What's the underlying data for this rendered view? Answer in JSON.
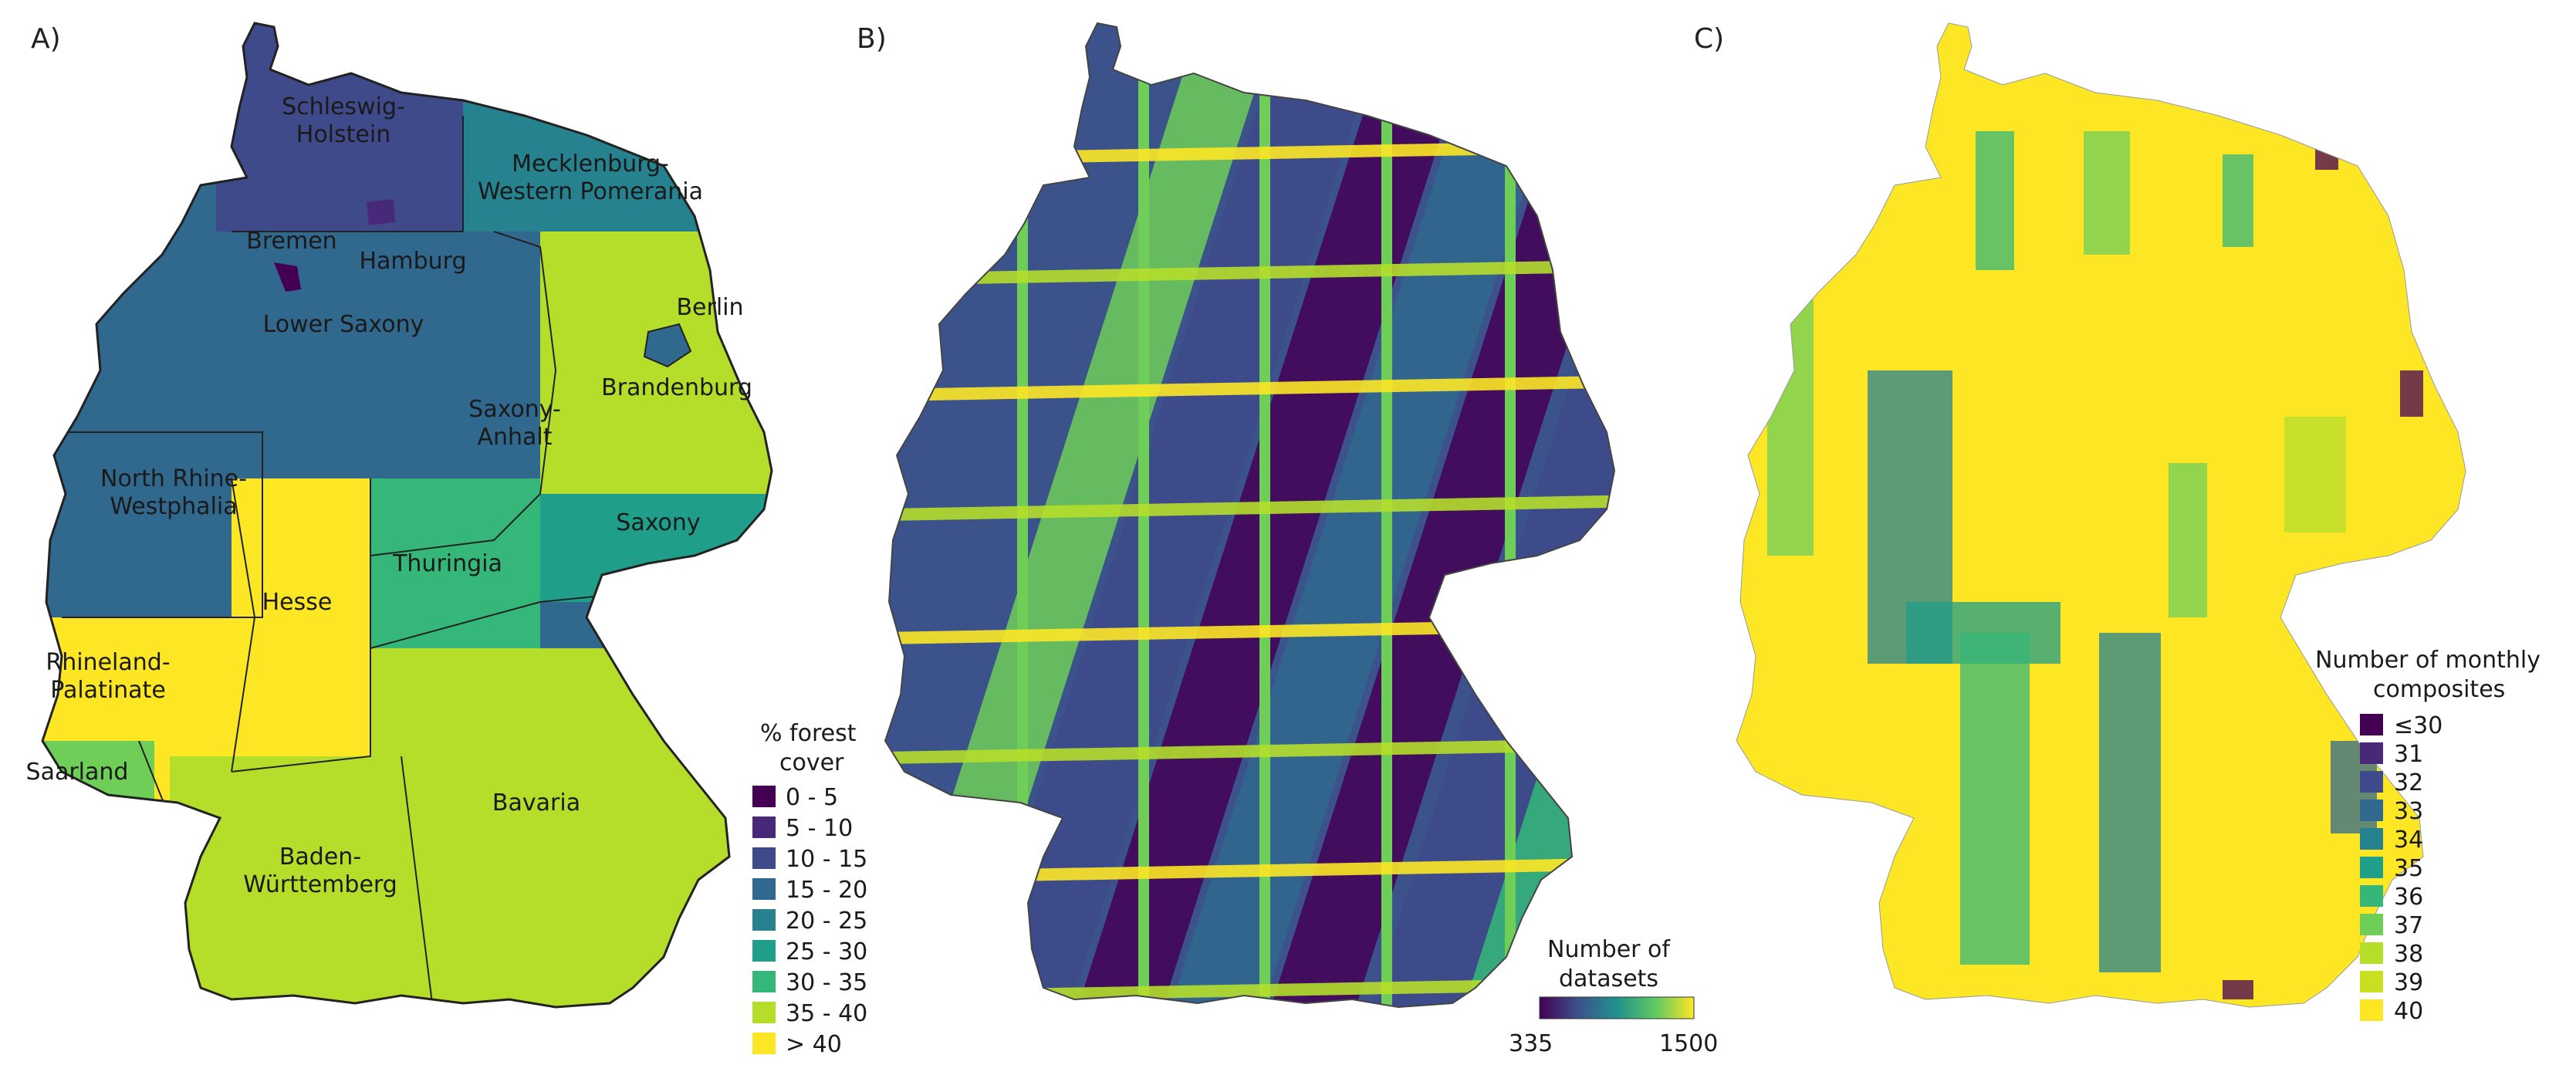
{
  "colors": {
    "viridis": [
      "#440154",
      "#482878",
      "#3e4a89",
      "#31688e",
      "#26828e",
      "#1f9e89",
      "#35b779",
      "#6ece58",
      "#b5de2b",
      "#fde725"
    ],
    "border": "#222222"
  },
  "panel_a": {
    "letter": "A)",
    "legend_title_line1": "% forest",
    "legend_title_line2": "cover",
    "legend_classes": [
      "0 - 5",
      "5 - 10",
      "10 - 15",
      "15 - 20",
      "20 - 25",
      "25 - 30",
      "30 - 35",
      "35 - 40",
      "> 40"
    ],
    "regions": [
      {
        "name": "Schleswig-Holstein",
        "lines": [
          "Schleswig-",
          "Holstein"
        ],
        "class": 2
      },
      {
        "name": "Mecklenburg-Western Pomerania",
        "lines": [
          "Mecklenburg-",
          "Western Pomerania"
        ],
        "class": 4
      },
      {
        "name": "Bremen",
        "lines": [
          "Bremen"
        ],
        "class": 0
      },
      {
        "name": "Hamburg",
        "lines": [
          "Hamburg"
        ],
        "class": 1
      },
      {
        "name": "Lower Saxony",
        "lines": [
          "Lower Saxony"
        ],
        "class": 3
      },
      {
        "name": "Berlin",
        "lines": [
          "Berlin"
        ],
        "class": 3
      },
      {
        "name": "Brandenburg",
        "lines": [
          "Brandenburg"
        ],
        "class": 7
      },
      {
        "name": "Saxony-Anhalt",
        "lines": [
          "Saxony-",
          "Anhalt"
        ],
        "class": 3
      },
      {
        "name": "North Rhine-Westphalia",
        "lines": [
          "North Rhine-",
          "Westphalia"
        ],
        "class": 3
      },
      {
        "name": "Saxony",
        "lines": [
          "Saxony"
        ],
        "class": 5
      },
      {
        "name": "Thuringia",
        "lines": [
          "Thuringia"
        ],
        "class": 6
      },
      {
        "name": "Hesse",
        "lines": [
          "Hesse"
        ],
        "class": 8
      },
      {
        "name": "Rhineland-Palatinate",
        "lines": [
          "Rhineland-",
          "Palatinate"
        ],
        "class": 8
      },
      {
        "name": "Saarland",
        "lines": [
          "Saarland"
        ],
        "class": 6
      },
      {
        "name": "Bavaria",
        "lines": [
          "Bavaria"
        ],
        "class": 7
      },
      {
        "name": "Baden-Württemberg",
        "lines": [
          "Baden-",
          "Württemberg"
        ],
        "class": 7
      }
    ]
  },
  "panel_b": {
    "letter": "B)",
    "legend_title_line1": "Number of",
    "legend_title_line2": "datasets",
    "scale_min": "335",
    "scale_max": "1500"
  },
  "panel_c": {
    "letter": "C)",
    "legend_title_line1": "Number of monthly",
    "legend_title_line2": "composites",
    "legend_classes": [
      "≤30",
      "31",
      "32",
      "33",
      "34",
      "35",
      "36",
      "37",
      "38",
      "39",
      "40"
    ]
  }
}
